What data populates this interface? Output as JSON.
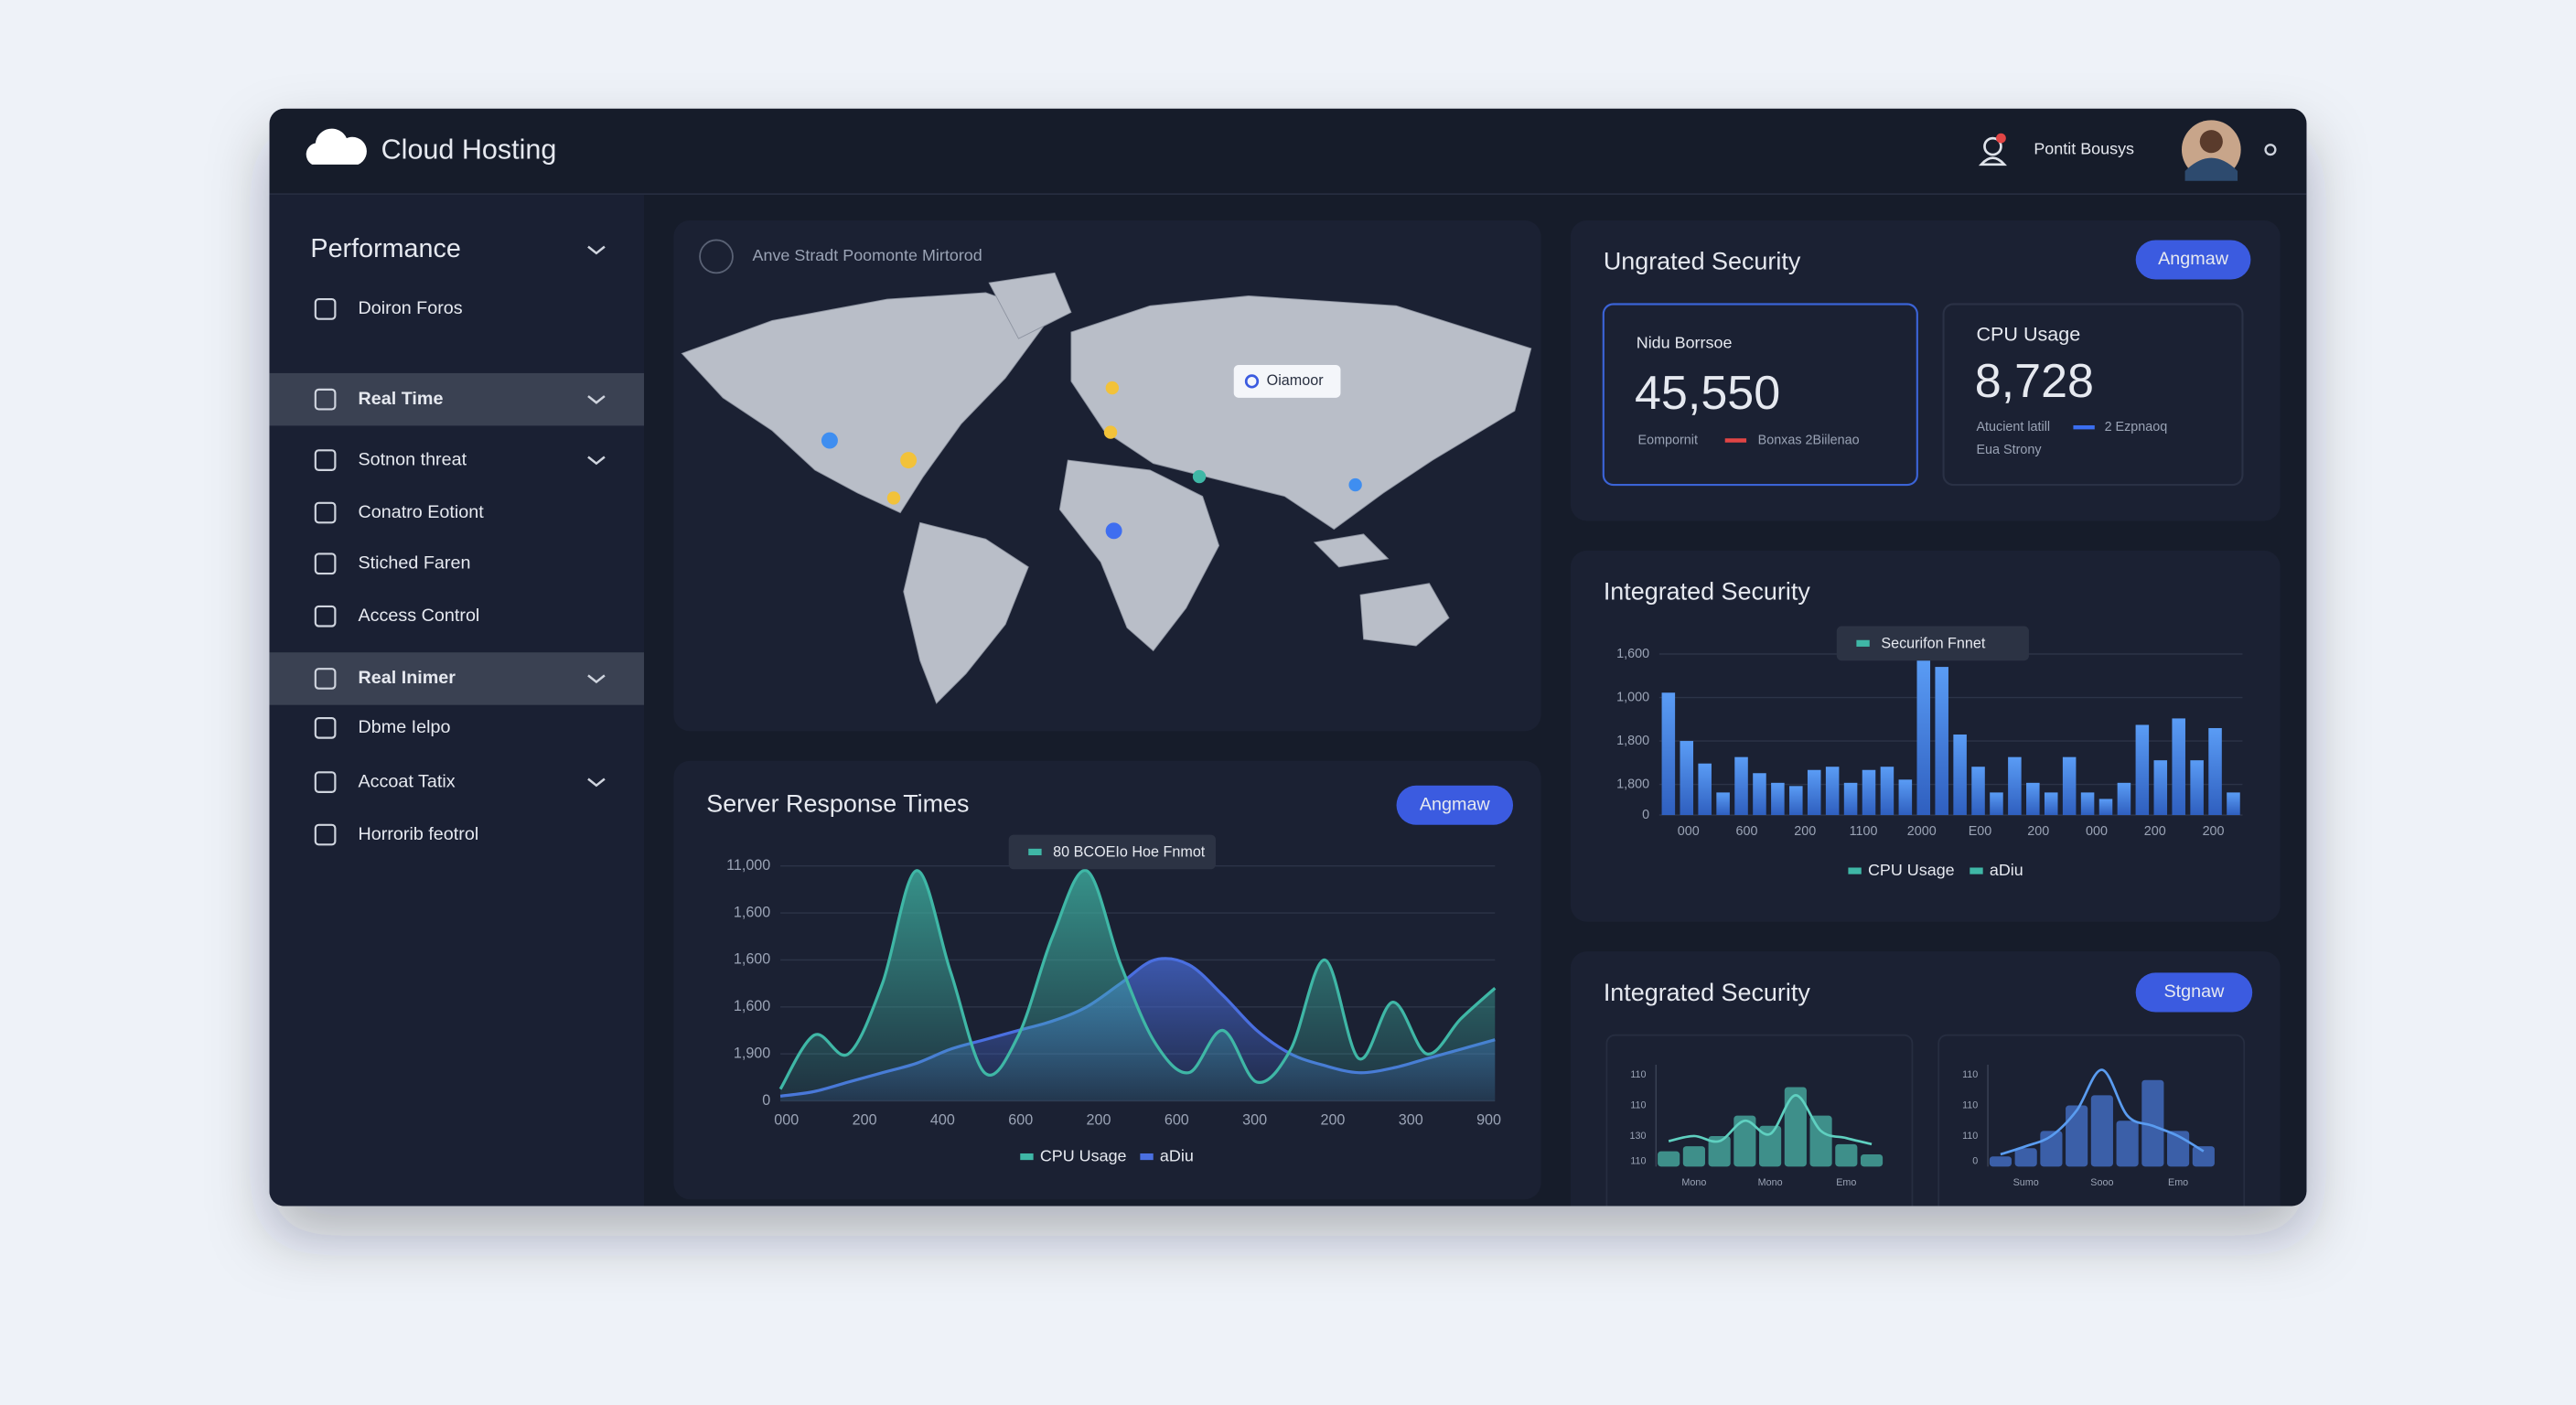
{
  "header": {
    "brand": "Cloud Hosting",
    "user": "Pontit Bousys"
  },
  "sidebar": [
    {
      "label": "Performance",
      "chevron": true
    },
    {
      "label": "Doiron Foros"
    },
    {
      "label": "Real Time",
      "chevron": true,
      "active": true
    },
    {
      "label": "Sotnon threat",
      "chevron": true
    },
    {
      "label": "Conatro Eotiont"
    },
    {
      "label": "Stiched Faren"
    },
    {
      "label": "Access Control"
    },
    {
      "label": "Real Inimer",
      "chevron": true,
      "active": true
    },
    {
      "label": "Dbme Ielpo"
    },
    {
      "label": "Accoat Tatix",
      "chevron": true
    },
    {
      "label": "Horrorib feotrol"
    }
  ],
  "map": {
    "title": "Anve Stradt Poomonte Mirtorod",
    "tooltip": "Oiamoor"
  },
  "security": {
    "title": "Ungrated Security",
    "button": "Angmaw",
    "cards": [
      {
        "label": "Nidu Borrsoe",
        "value": "45,550",
        "notes": [
          "Eompornit",
          "Bonxas 2Biilenao"
        ]
      },
      {
        "label": "CPU Usage",
        "value": "8,728",
        "notes": [
          "Atucient latill",
          "2 Ezpnaoq",
          "Eua Strony"
        ]
      }
    ]
  },
  "response_chart": {
    "type": "area",
    "title": "Server Response Times",
    "button": "Angmaw",
    "tooltip": "80 BCOEIo Hoe Fnmot",
    "ylim": [
      0,
      100
    ],
    "yticks": [
      {
        "value": 100,
        "label": "11,000"
      },
      {
        "value": 80,
        "label": "1,600"
      },
      {
        "value": 60,
        "label": "1,600"
      },
      {
        "value": 40,
        "label": "1,600"
      },
      {
        "value": 20,
        "label": "1,900"
      },
      0
    ],
    "categories": [
      "000",
      "200",
      "400",
      "600",
      "200",
      "600",
      "300",
      "200",
      "300",
      "900"
    ],
    "series": [
      {
        "name": "CPU Usage",
        "color": "#3fb7a6",
        "values": [
          5,
          28,
          20,
          50,
          98,
          55,
          12,
          28,
          70,
          98,
          58,
          25,
          12,
          30,
          8,
          22,
          60,
          18,
          42,
          20,
          35,
          48
        ]
      },
      {
        "name": "aDiu",
        "color": "#4a6fe0",
        "values": [
          2,
          4,
          8,
          12,
          16,
          22,
          26,
          30,
          34,
          40,
          50,
          60,
          58,
          45,
          30,
          20,
          15,
          12,
          14,
          18,
          22,
          26
        ]
      }
    ]
  },
  "bar_chart": {
    "type": "bar",
    "title": "Integrated Security",
    "tooltip": "Securifon Fnnet",
    "ylim": [
      0,
      100
    ],
    "yticks": [
      {
        "value": 100,
        "label": "1,600"
      },
      {
        "value": 73,
        "label": "1,000"
      },
      {
        "value": 46,
        "label": "1,800"
      },
      {
        "value": 19,
        "label": "1,800"
      },
      0
    ],
    "categories": [
      "000",
      "600",
      "200",
      "1100",
      "2000",
      "E00",
      "200",
      "000",
      "200",
      "200"
    ],
    "legend": [
      "CPU Usage",
      "aDiu"
    ],
    "color": "#4a8ae8",
    "values": [
      76,
      46,
      32,
      14,
      36,
      26,
      20,
      18,
      28,
      30,
      20,
      28,
      30,
      22,
      96,
      92,
      50,
      30,
      14,
      36,
      20,
      14,
      36,
      14,
      10,
      20,
      56,
      34,
      60,
      34,
      54,
      14
    ]
  },
  "bottom": {
    "title": "Integrated Security",
    "button": "Stgnaw",
    "charts": [
      {
        "type": "bar",
        "ylim": [
          0,
          100
        ],
        "yticks": [
          {
            "value": 90,
            "label": "110"
          },
          {
            "value": 60,
            "label": "110"
          },
          {
            "value": 30,
            "label": "130"
          },
          {
            "value": 5,
            "label": "110"
          }
        ],
        "categories": [
          "Mono",
          "Mono",
          "Emo"
        ],
        "color": "#3e8f8a",
        "values": [
          15,
          20,
          30,
          50,
          40,
          78,
          50,
          22,
          12
        ],
        "series": [
          {
            "name": "line",
            "color": "#5fd0c0",
            "values": [
              25,
              30,
              25,
              45,
              32,
              70,
              35,
              28,
              22
            ]
          }
        ]
      },
      {
        "type": "bar",
        "ylim": [
          0,
          100
        ],
        "yticks": [
          {
            "value": 90,
            "label": "110"
          },
          {
            "value": 60,
            "label": "110"
          },
          {
            "value": 30,
            "label": "110"
          },
          {
            "value": 5,
            "label": "0"
          }
        ],
        "categories": [
          "Sumo",
          "Sooo",
          "Emo"
        ],
        "color": "#3b5fa8",
        "values": [
          10,
          18,
          35,
          60,
          70,
          45,
          85,
          35,
          20
        ],
        "series": [
          {
            "name": "line",
            "color": "#5a9cf0",
            "values": [
              12,
              20,
              30,
              55,
              95,
              50,
              40,
              30,
              15
            ]
          }
        ]
      }
    ]
  }
}
